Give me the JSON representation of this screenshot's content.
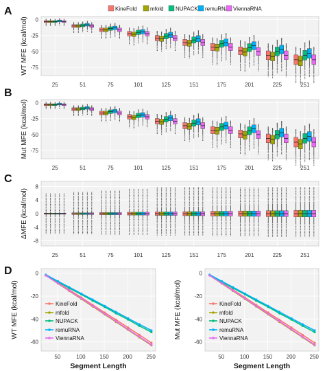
{
  "legend": [
    "KineFold",
    "mfold",
    "NUPACK",
    "remuRNA",
    "ViennaRNA"
  ],
  "colors": {
    "KineFold": "#f8766d",
    "mfold": "#a3a500",
    "NUPACK": "#00bf7d",
    "remuRNA": "#00b0f6",
    "ViennaRNA": "#e76bf3"
  },
  "chart_data": [
    {
      "panel": "A",
      "type": "box",
      "ylabel": "WT MFE (kcal/mol)",
      "categories": [
        "25",
        "51",
        "75",
        "101",
        "125",
        "151",
        "175",
        "201",
        "225",
        "251"
      ],
      "yticks": [
        0,
        -25,
        -50,
        -75
      ],
      "ylim": [
        -88,
        5
      ],
      "series": [
        {
          "name": "KineFold",
          "medians": [
            -3,
            -10,
            -16,
            -22,
            -29,
            -36,
            -43,
            -49,
            -56,
            -63
          ]
        },
        {
          "name": "mfold",
          "medians": [
            -3,
            -10,
            -16,
            -23,
            -30,
            -37,
            -44,
            -51,
            -58,
            -65
          ]
        },
        {
          "name": "NUPACK",
          "medians": [
            -3,
            -9,
            -14,
            -20,
            -26,
            -32,
            -38,
            -44,
            -50,
            -56
          ]
        },
        {
          "name": "remuRNA",
          "medians": [
            -2,
            -8,
            -13,
            -19,
            -24,
            -30,
            -36,
            -41,
            -47,
            -53
          ]
        },
        {
          "name": "ViennaRNA",
          "medians": [
            -3,
            -10,
            -16,
            -22,
            -29,
            -36,
            -43,
            -50,
            -56,
            -63
          ]
        }
      ]
    },
    {
      "panel": "B",
      "type": "box",
      "ylabel": "Mut MFE (kcal/mol)",
      "categories": [
        "25",
        "51",
        "75",
        "101",
        "125",
        "151",
        "175",
        "201",
        "225",
        "251"
      ],
      "yticks": [
        0,
        -25,
        -50,
        -75
      ],
      "ylim": [
        -88,
        5
      ],
      "series": [
        {
          "name": "KineFold",
          "medians": [
            -3,
            -10,
            -16,
            -22,
            -29,
            -36,
            -43,
            -49,
            -56,
            -62
          ]
        },
        {
          "name": "mfold",
          "medians": [
            -3,
            -10,
            -16,
            -23,
            -30,
            -37,
            -44,
            -51,
            -58,
            -65
          ]
        },
        {
          "name": "NUPACK",
          "medians": [
            -3,
            -9,
            -14,
            -20,
            -26,
            -32,
            -38,
            -44,
            -50,
            -56
          ]
        },
        {
          "name": "remuRNA",
          "medians": [
            -2,
            -8,
            -13,
            -19,
            -24,
            -30,
            -36,
            -41,
            -47,
            -53
          ]
        },
        {
          "name": "ViennaRNA",
          "medians": [
            -3,
            -10,
            -16,
            -22,
            -29,
            -36,
            -43,
            -50,
            -56,
            -62
          ]
        }
      ]
    },
    {
      "panel": "C",
      "type": "box",
      "ylabel": "ΔMFE (kcal/mol)",
      "categories": [
        "25",
        "51",
        "75",
        "101",
        "125",
        "151",
        "175",
        "201",
        "225",
        "251"
      ],
      "yticks": [
        8,
        4,
        0,
        -4,
        -8
      ],
      "ylim": [
        -9.5,
        9.5
      ],
      "series": [
        {
          "name": "KineFold",
          "medians": [
            0,
            0,
            0,
            0,
            0,
            0,
            0,
            0,
            0,
            0
          ]
        },
        {
          "name": "mfold",
          "medians": [
            0,
            0,
            0,
            0,
            0,
            0,
            0,
            0,
            0,
            0
          ]
        },
        {
          "name": "NUPACK",
          "medians": [
            0,
            0,
            0,
            0,
            0,
            0,
            0,
            0,
            0,
            0
          ]
        },
        {
          "name": "remuRNA",
          "medians": [
            0,
            0,
            0,
            0,
            0,
            0,
            0,
            0,
            0,
            0
          ]
        },
        {
          "name": "ViennaRNA",
          "medians": [
            0,
            0,
            0,
            0,
            0,
            0,
            0,
            0,
            0,
            0
          ]
        }
      ]
    },
    {
      "panel": "D",
      "type": "line",
      "ylabel": "WT MFE (kcal/mol)",
      "xlabel": "Segment Length",
      "xticks": [
        50,
        100,
        150,
        200,
        250
      ],
      "yticks": [
        0,
        -20,
        -40,
        -60
      ],
      "xlim": [
        15,
        260
      ],
      "ylim": [
        -68,
        4
      ],
      "x": [
        25,
        51,
        75,
        101,
        125,
        151,
        175,
        201,
        225,
        251
      ],
      "series": [
        {
          "name": "KineFold",
          "values": [
            -1.8,
            -8.4,
            -14.5,
            -21.2,
            -27.6,
            -34.4,
            -40.6,
            -47.5,
            -53.8,
            -60.8
          ]
        },
        {
          "name": "mfold",
          "values": [
            -2,
            -9,
            -15.5,
            -22.5,
            -29,
            -36,
            -42.5,
            -49.5,
            -56,
            -63
          ]
        },
        {
          "name": "NUPACK",
          "values": [
            -1.5,
            -7.5,
            -13,
            -18.5,
            -24,
            -29.5,
            -35,
            -40.5,
            -46,
            -51.5
          ]
        },
        {
          "name": "remuRNA",
          "values": [
            -1.3,
            -7,
            -12.2,
            -17.8,
            -23,
            -28.6,
            -33.8,
            -39.4,
            -44.6,
            -50
          ]
        },
        {
          "name": "ViennaRNA",
          "values": [
            -2,
            -8.8,
            -15.2,
            -22,
            -28.6,
            -35.5,
            -42,
            -49,
            -55.5,
            -62.5
          ]
        }
      ]
    },
    {
      "panel": "",
      "type": "line",
      "ylabel": "Mut MFE (kcal/mol)",
      "xlabel": "Segment Length",
      "xticks": [
        50,
        100,
        150,
        200,
        250
      ],
      "yticks": [
        0,
        -20,
        -40,
        -60
      ],
      "xlim": [
        15,
        260
      ],
      "ylim": [
        -68,
        4
      ],
      "x": [
        25,
        51,
        75,
        101,
        125,
        151,
        175,
        201,
        225,
        251
      ],
      "series": [
        {
          "name": "KineFold",
          "values": [
            -1.8,
            -8.4,
            -14.5,
            -21.2,
            -27.6,
            -34.4,
            -40.6,
            -47.5,
            -53.8,
            -60.8
          ]
        },
        {
          "name": "mfold",
          "values": [
            -2,
            -9,
            -15.5,
            -22.5,
            -29,
            -36,
            -42.5,
            -49.5,
            -56,
            -63
          ]
        },
        {
          "name": "NUPACK",
          "values": [
            -1.5,
            -7.5,
            -13,
            -18.5,
            -24,
            -29.5,
            -35,
            -40.5,
            -46,
            -51.5
          ]
        },
        {
          "name": "remuRNA",
          "values": [
            -1.3,
            -7,
            -12.2,
            -17.8,
            -23,
            -28.6,
            -33.8,
            -39.4,
            -44.6,
            -50
          ]
        },
        {
          "name": "ViennaRNA",
          "values": [
            -2,
            -8.8,
            -15.2,
            -22,
            -28.6,
            -35.5,
            -42,
            -49,
            -55.5,
            -62.5
          ]
        }
      ]
    }
  ]
}
